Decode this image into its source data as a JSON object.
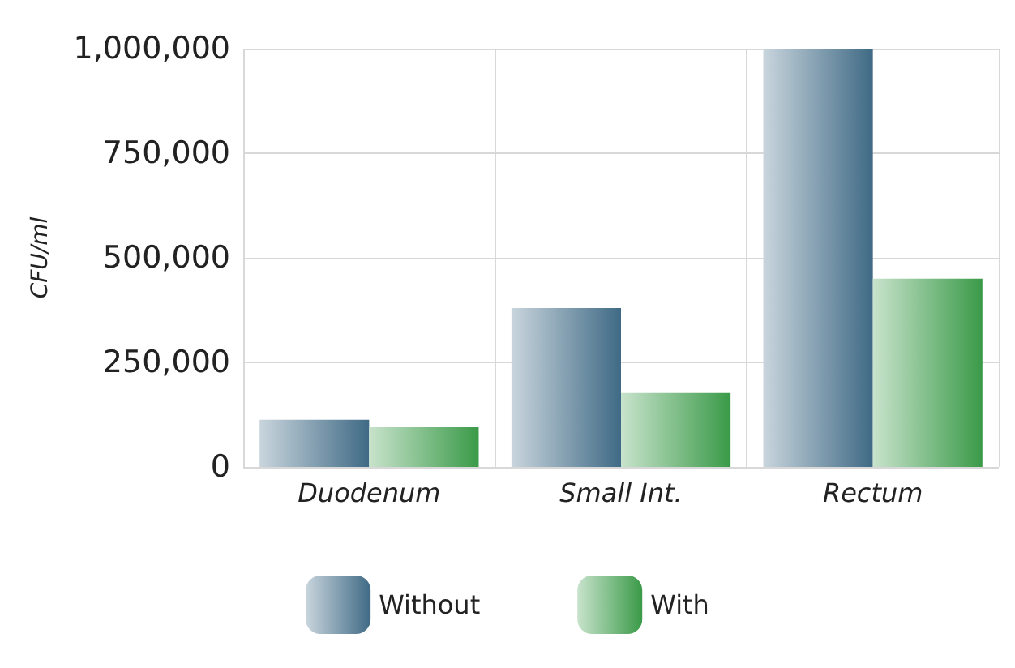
{
  "chart_data": {
    "type": "bar",
    "ylabel": "CFU/ml",
    "categories": [
      "Duodenum",
      "Small Int.",
      "Rectum"
    ],
    "series": [
      {
        "name": "Without",
        "color": "#3f6a85",
        "values": [
          113000,
          380000,
          1000000
        ]
      },
      {
        "name": "With",
        "color": "#3a9a48",
        "values": [
          95000,
          177000,
          450000
        ]
      }
    ],
    "ylim": [
      0,
      1000000
    ],
    "yticks": [
      0,
      {
        "value": 250000,
        "label": "250,000"
      },
      {
        "value": 500000,
        "label": "500,000"
      },
      {
        "value": 750000,
        "label": "750,000"
      },
      {
        "value": 1000000,
        "label": "1,000,000"
      }
    ],
    "grid": true,
    "legend": "bottom"
  }
}
